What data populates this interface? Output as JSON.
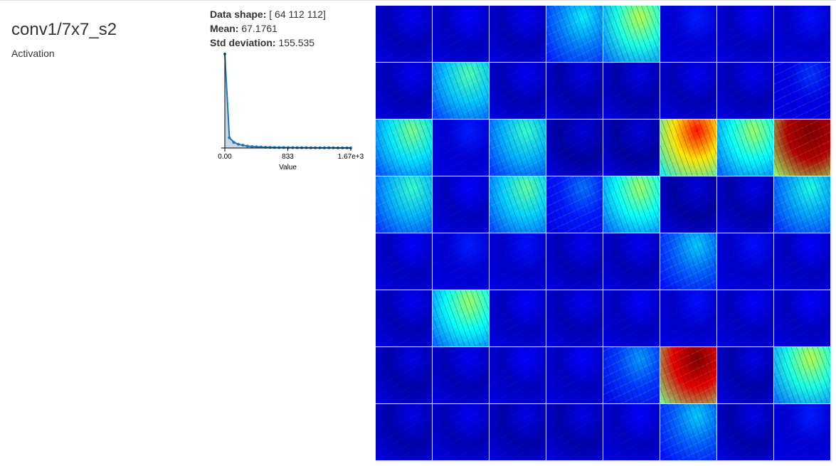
{
  "layer": {
    "name": "conv1/7x7_s2",
    "type": "Activation"
  },
  "stats": {
    "shape_label": "Data shape:",
    "shape_value": "[ 64 112 112]",
    "mean_label": "Mean:",
    "mean_value": "67.1761",
    "std_label": "Std deviation:",
    "std_value": "155.535"
  },
  "chart_data": {
    "type": "line",
    "xlabel": "Value",
    "xticks": [
      "0.00",
      "833",
      "1.67e+3"
    ],
    "xlim": [
      0,
      1670
    ],
    "x": [
      0,
      60,
      120,
      180,
      240,
      300,
      360,
      420,
      480,
      540,
      600,
      660,
      720,
      780,
      840,
      900,
      960,
      1020,
      1080,
      1140,
      1200,
      1260,
      1320,
      1380,
      1440,
      1500,
      1560,
      1620,
      1670
    ],
    "values": [
      1.0,
      0.11,
      0.06,
      0.04,
      0.03,
      0.02,
      0.015,
      0.012,
      0.01,
      0.008,
      0.007,
      0.006,
      0.005,
      0.005,
      0.004,
      0.004,
      0.003,
      0.003,
      0.003,
      0.002,
      0.002,
      0.002,
      0.002,
      0.002,
      0.002,
      0.001,
      0.001,
      0.001,
      0.001
    ],
    "ylim": [
      0,
      1.0
    ],
    "colors": {
      "line": "#1f77b4",
      "fill": "#c6d7e8"
    }
  },
  "activation_grid": {
    "rows": 8,
    "cols": 8,
    "channel_intensity": [
      0.05,
      0.06,
      0.05,
      0.25,
      0.4,
      0.08,
      0.06,
      0.07,
      0.05,
      0.32,
      0.05,
      0.04,
      0.04,
      0.05,
      0.05,
      0.1,
      0.35,
      0.08,
      0.3,
      0.03,
      0.03,
      0.65,
      0.38,
      0.95,
      0.3,
      0.06,
      0.33,
      0.15,
      0.38,
      0.03,
      0.04,
      0.28,
      0.06,
      0.08,
      0.07,
      0.05,
      0.05,
      0.22,
      0.07,
      0.06,
      0.05,
      0.38,
      0.06,
      0.05,
      0.06,
      0.07,
      0.06,
      0.06,
      0.04,
      0.05,
      0.06,
      0.06,
      0.18,
      0.9,
      0.04,
      0.4,
      0.04,
      0.05,
      0.04,
      0.04,
      0.06,
      0.22,
      0.04,
      0.08
    ]
  }
}
